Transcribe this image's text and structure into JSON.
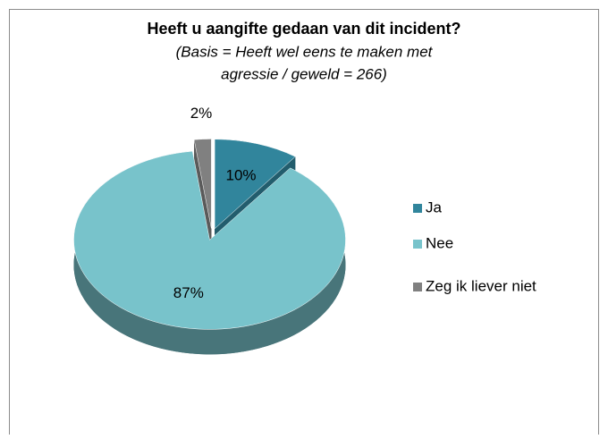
{
  "chart_data": {
    "type": "pie",
    "title": "Heeft u aangifte gedaan van dit incident?",
    "subtitle": [
      "(Basis = Heeft wel eens te maken met",
      "agressie / geweld = 266)"
    ],
    "categories": [
      "Ja",
      "Nee",
      "Zeg ik liever niet"
    ],
    "values": [
      10,
      87,
      2
    ],
    "value_labels": [
      "10%",
      "87%",
      "2%"
    ],
    "colors": [
      "#31859c",
      "#78c3cb",
      "#808080"
    ],
    "legend": "right"
  }
}
